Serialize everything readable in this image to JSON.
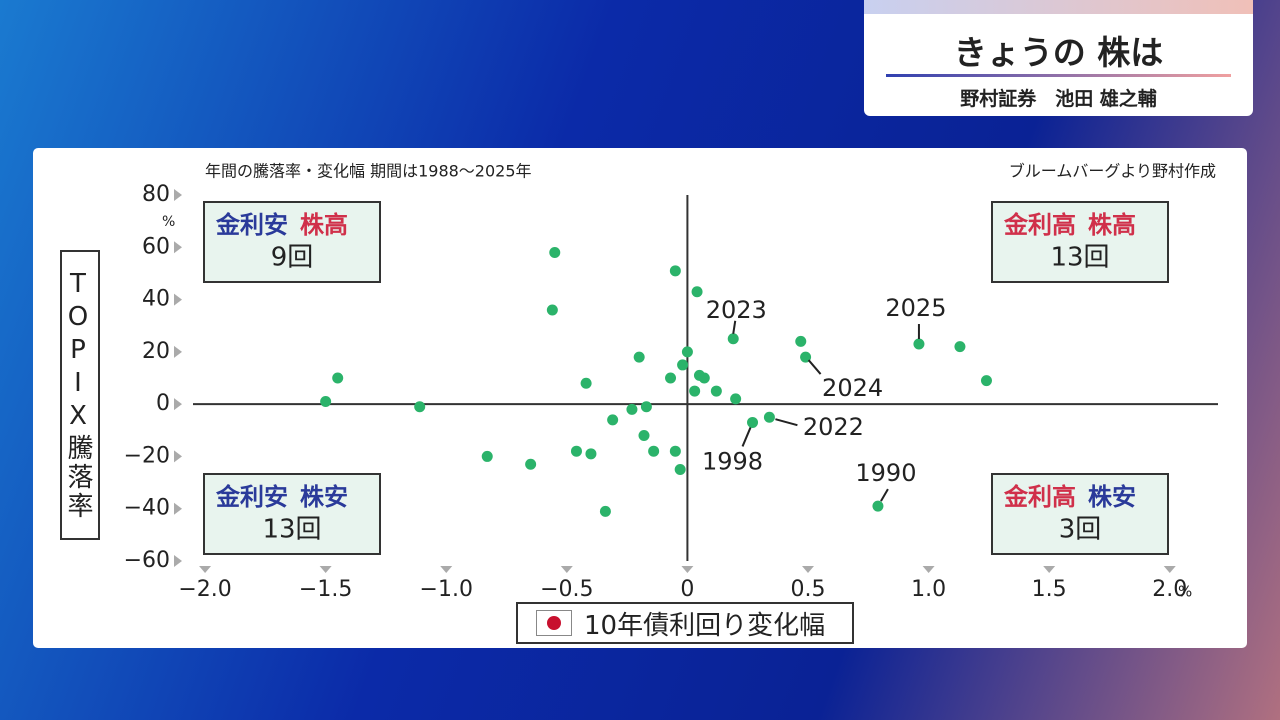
{
  "header": {
    "title": "きょうの 株は",
    "subtitle": "野村証券　池田 雄之輔"
  },
  "chart_data": {
    "type": "scatter",
    "subtitle": "年間の騰落率・変化幅 期間は1988〜2025年",
    "source": "ブルームバーグより野村作成",
    "x_label": "10年債利回り変化幅",
    "y_label": "TOPIX騰落率",
    "x_unit": "%",
    "y_unit": "%",
    "color": "#2bb36a",
    "xlim": [
      -2.05,
      2.2
    ],
    "ylim": [
      -60,
      80
    ],
    "xticks": [
      {
        "value": -2.0,
        "label": "−2.0"
      },
      {
        "value": -1.5,
        "label": "−1.5"
      },
      {
        "value": -1.0,
        "label": "−1.0"
      },
      {
        "value": -0.5,
        "label": "−0.5"
      },
      0,
      0.5,
      {
        "value": 1.0,
        "label": "1.0"
      },
      1.5,
      {
        "value": 2.0,
        "label": "2.0"
      }
    ],
    "yticks": [
      80,
      60,
      40,
      20,
      0,
      {
        "value": -20,
        "label": "−20"
      },
      {
        "value": -40,
        "label": "−40"
      },
      {
        "value": -60,
        "label": "−60"
      }
    ],
    "x": [
      -0.55,
      -0.56,
      -0.05,
      0.04,
      0.19,
      0,
      -0.02,
      -0.2,
      -0.07,
      0.05,
      0.07,
      0.12,
      0.03,
      0.2,
      -0.42,
      -1.45,
      -1.5,
      -1.11,
      -0.23,
      -0.17,
      -0.31,
      -0.18,
      -0.14,
      -0.05,
      -0.03,
      -0.46,
      -0.4,
      -0.65,
      -0.83,
      -0.34,
      0.27,
      0.34,
      0.47,
      0.49,
      0.96,
      1.13,
      1.24,
      0.79
    ],
    "values": [
      58,
      36,
      51,
      43,
      25,
      20,
      15,
      18,
      10,
      11,
      10,
      5,
      5,
      2,
      8,
      10,
      1,
      -1,
      -2,
      -1,
      -6,
      -12,
      -18,
      -18,
      -25,
      -18,
      -19,
      -23,
      -20,
      -41,
      -7,
      -5,
      24,
      18,
      23,
      22,
      9,
      -39
    ],
    "labels": [
      null,
      null,
      null,
      null,
      "2023",
      null,
      null,
      null,
      null,
      null,
      null,
      null,
      null,
      null,
      null,
      null,
      null,
      null,
      null,
      null,
      null,
      null,
      null,
      null,
      null,
      null,
      null,
      null,
      null,
      null,
      "1998",
      "2022",
      null,
      "2024",
      "2025",
      null,
      null,
      "1990"
    ],
    "quadrants": [
      {
        "rate": "金利安",
        "stock": "株高",
        "count": "9回"
      },
      {
        "rate": "金利高",
        "stock": "株高",
        "count": "13回"
      },
      {
        "rate": "金利安",
        "stock": "株安",
        "count": "13回"
      },
      {
        "rate": "金利高",
        "stock": "株安",
        "count": "3回"
      }
    ]
  }
}
